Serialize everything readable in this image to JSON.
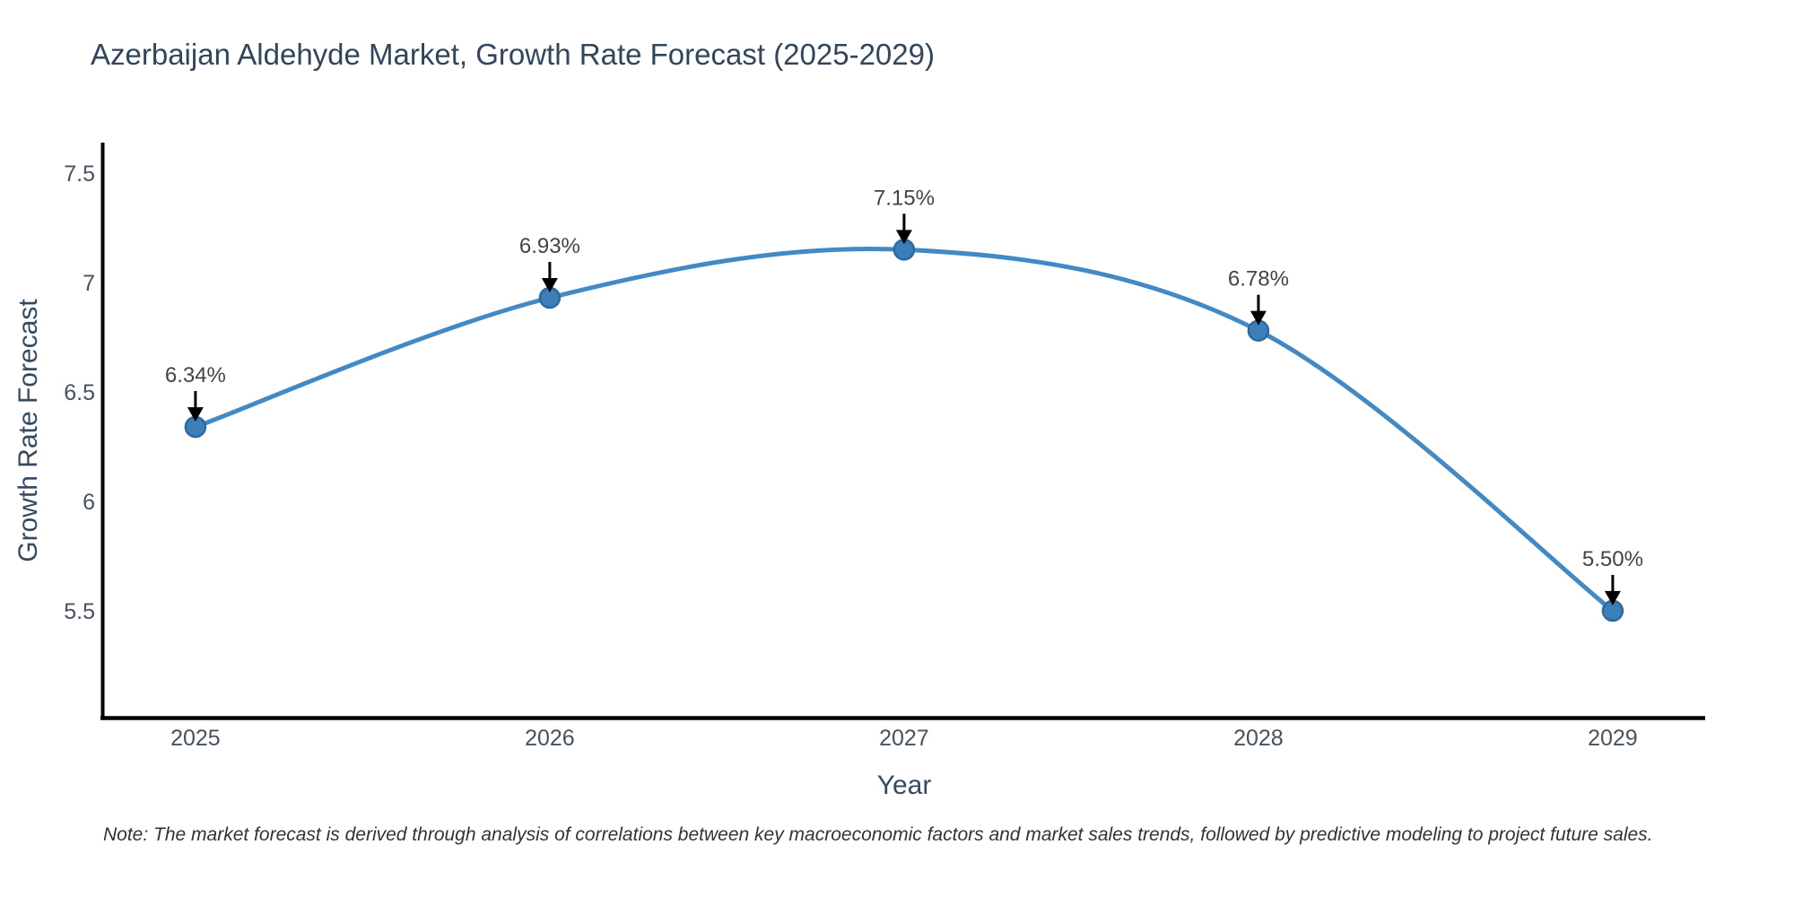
{
  "title": "Azerbaijan Aldehyde Market, Growth Rate Forecast (2025-2029)",
  "note": "Note: The market forecast is derived through analysis of correlations between key macroeconomic factors and market sales trends, followed by predictive modeling to project future sales.",
  "chart_data": {
    "type": "line",
    "title": "Azerbaijan Aldehyde Market, Growth Rate Forecast (2025-2029)",
    "xlabel": "Year",
    "ylabel": "Growth Rate Forecast",
    "x": [
      2025,
      2026,
      2027,
      2028,
      2029
    ],
    "series": [
      {
        "name": "Growth Rate Forecast",
        "values": [
          6.34,
          6.93,
          7.15,
          6.78,
          5.5
        ]
      }
    ],
    "point_labels": [
      "6.34%",
      "6.93%",
      "7.15%",
      "6.78%",
      "5.50%"
    ],
    "x_tick_labels": [
      "2025",
      "2026",
      "2027",
      "2028",
      "2029"
    ],
    "y_tick_values": [
      5.5,
      6,
      6.5,
      7,
      7.5
    ],
    "y_tick_labels": [
      "5.5",
      "6",
      "6.5",
      "7",
      "7.5"
    ],
    "xlim": [
      2024.737,
      2029.261
    ],
    "ylim": [
      5.012,
      7.639
    ],
    "line_shape": "spline",
    "grid": false,
    "legend": "none",
    "annotations_have_arrows": true,
    "colors": {
      "line": "#4389c4",
      "marker_fill": "#3c7fb8",
      "marker_edge": "#2a6aa3",
      "axis_line": "#000000",
      "arrow": "#000000",
      "title_text": "#31455c",
      "axis_title_text": "#36495e",
      "tick_text": "#47525f",
      "annotation_text": "#444444",
      "note_text": "#333333",
      "background": "#ffffff"
    }
  }
}
